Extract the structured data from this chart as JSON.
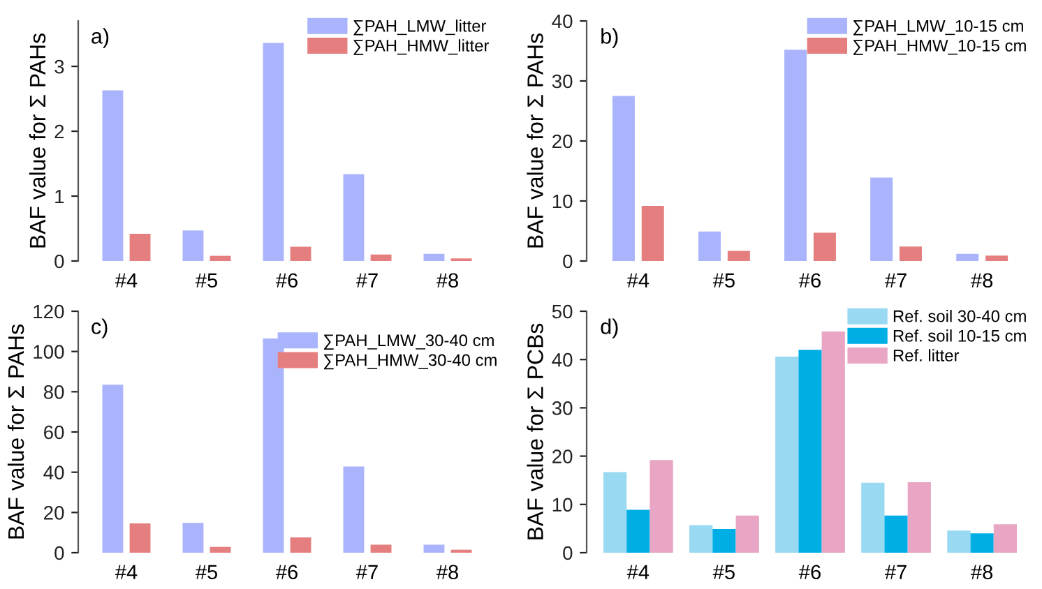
{
  "chart_data": [
    {
      "type": "bar",
      "annotations": [
        "a)"
      ],
      "ylabel": "BAF value for Σ PAHs",
      "categories": [
        "#4",
        "#5",
        "#6",
        "#7",
        "#8"
      ],
      "ylim": [
        0,
        3.7
      ],
      "yticks": [
        0,
        1,
        2,
        3
      ],
      "grid": false,
      "legend": "top right",
      "series": [
        {
          "name": "∑PAH_LMW_litter",
          "color": "#aab4fc",
          "values": [
            2.63,
            0.47,
            3.36,
            1.34,
            0.11
          ]
        },
        {
          "name": "∑PAH_HMW_litter",
          "color": "#e57f7f",
          "values": [
            0.42,
            0.08,
            0.22,
            0.1,
            0.04
          ]
        }
      ]
    },
    {
      "type": "bar",
      "annotations": [
        "b)"
      ],
      "ylabel": "BAF value for Σ PAHs",
      "categories": [
        "#4",
        "#5",
        "#6",
        "#7",
        "#8"
      ],
      "ylim": [
        0,
        40
      ],
      "yticks": [
        0,
        10,
        20,
        30,
        40
      ],
      "grid": false,
      "legend": "top right",
      "series": [
        {
          "name": "∑PAH_LMW_10-15 cm",
          "color": "#aab4fc",
          "values": [
            27.5,
            4.9,
            35.2,
            13.9,
            1.2
          ]
        },
        {
          "name": "∑PAH_HMW_10-15 cm",
          "color": "#e57f7f",
          "values": [
            9.2,
            1.7,
            4.7,
            2.4,
            0.9
          ]
        }
      ]
    },
    {
      "type": "bar",
      "annotations": [
        "c)"
      ],
      "ylabel": "BAF value for Σ PAHs",
      "categories": [
        "#4",
        "#5",
        "#6",
        "#7",
        "#8"
      ],
      "ylim": [
        0,
        120
      ],
      "yticks": [
        0,
        20,
        40,
        60,
        80,
        100,
        120
      ],
      "grid": false,
      "legend": "top right",
      "series": [
        {
          "name": "∑PAH_LMW_30-40 cm",
          "color": "#aab4fc",
          "values": [
            83.5,
            14.8,
            106.5,
            42.8,
            4.0
          ]
        },
        {
          "name": "∑PAH_HMW_30-40 cm",
          "color": "#e57f7f",
          "values": [
            14.6,
            2.9,
            7.6,
            4.0,
            1.5
          ]
        }
      ]
    },
    {
      "type": "bar",
      "annotations": [
        "d)"
      ],
      "ylabel": "BAF value for Σ PCBs",
      "categories": [
        "#4",
        "#5",
        "#6",
        "#7",
        "#8"
      ],
      "ylim": [
        0,
        50
      ],
      "yticks": [
        0,
        10,
        20,
        30,
        40,
        50
      ],
      "grid": false,
      "legend": "top right",
      "series": [
        {
          "name": "Ref. soil 30-40 cm",
          "color": "#99d9f2",
          "values": [
            16.7,
            5.7,
            40.6,
            14.5,
            4.6
          ]
        },
        {
          "name": "Ref. soil 10-15 cm",
          "color": "#00aee6",
          "values": [
            8.9,
            4.9,
            42.0,
            7.7,
            4.0
          ]
        },
        {
          "name": "Ref. litter",
          "color": "#e8a5c4",
          "values": [
            19.2,
            7.7,
            45.8,
            14.6,
            5.9
          ]
        }
      ]
    }
  ]
}
